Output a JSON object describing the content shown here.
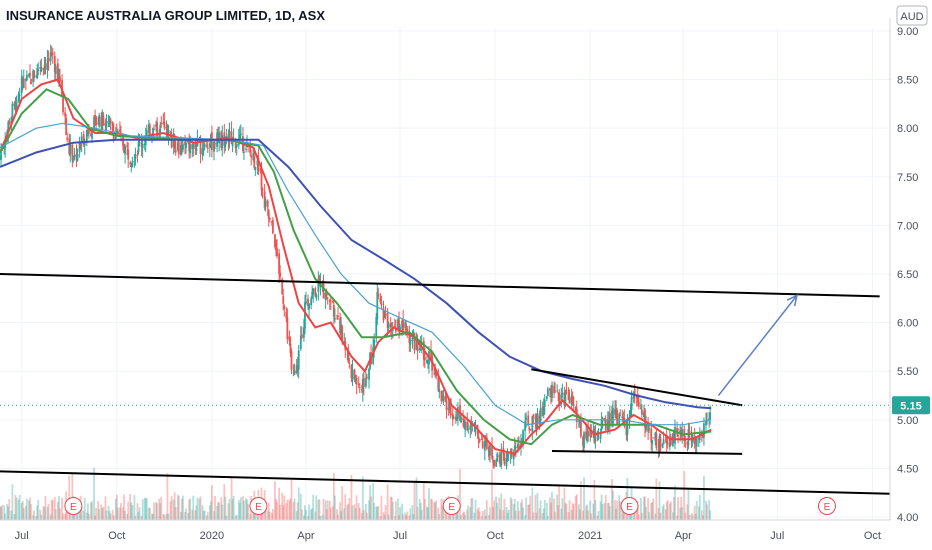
{
  "chart_data": {
    "type": "candlestick",
    "title": "INSURANCE AUSTRALIA GROUP LIMITED, 1D, ASX",
    "currency": "AUD",
    "last_price": "5.15",
    "y_ticks": [
      "9.00",
      "8.50",
      "8.00",
      "7.50",
      "7.00",
      "6.50",
      "6.00",
      "5.50",
      "5.00",
      "4.50",
      "4.00"
    ],
    "ylim": [
      3.97,
      9.03
    ],
    "x_ticks": [
      "Jul",
      "Oct",
      "2020",
      "Apr",
      "Jul",
      "Oct",
      "2021",
      "Apr",
      "Jul",
      "Oct"
    ],
    "x_ticks_start": "2019-07-01",
    "x_ticks_step_months": 3,
    "x_range": [
      "2019-06-10",
      "2021-10-18"
    ],
    "price_series": [
      [
        "2019-06-10",
        7.7
      ],
      [
        "2019-06-20",
        8.1
      ],
      [
        "2019-07-01",
        8.45
      ],
      [
        "2019-07-10",
        8.5
      ],
      [
        "2019-07-20",
        8.65
      ],
      [
        "2019-08-01",
        8.7
      ],
      [
        "2019-08-08",
        8.45
      ],
      [
        "2019-08-15",
        7.8
      ],
      [
        "2019-08-22",
        7.7
      ],
      [
        "2019-09-01",
        7.95
      ],
      [
        "2019-09-15",
        8.1
      ],
      [
        "2019-10-01",
        7.95
      ],
      [
        "2019-10-15",
        7.7
      ],
      [
        "2019-11-01",
        7.95
      ],
      [
        "2019-11-15",
        8.0
      ],
      [
        "2019-12-01",
        7.8
      ],
      [
        "2019-12-15",
        7.8
      ],
      [
        "2020-01-01",
        7.85
      ],
      [
        "2020-01-15",
        7.9
      ],
      [
        "2020-02-01",
        7.85
      ],
      [
        "2020-02-15",
        7.6
      ],
      [
        "2020-02-22",
        7.2
      ],
      [
        "2020-03-01",
        6.9
      ],
      [
        "2020-03-10",
        6.3
      ],
      [
        "2020-03-20",
        5.4
      ],
      [
        "2020-03-25",
        5.6
      ],
      [
        "2020-04-01",
        6.2
      ],
      [
        "2020-04-15",
        6.4
      ],
      [
        "2020-05-01",
        6.1
      ],
      [
        "2020-05-15",
        5.5
      ],
      [
        "2020-05-25",
        5.3
      ],
      [
        "2020-06-05",
        5.7
      ],
      [
        "2020-06-10",
        6.3
      ],
      [
        "2020-06-20",
        5.9
      ],
      [
        "2020-07-01",
        6.0
      ],
      [
        "2020-07-15",
        5.8
      ],
      [
        "2020-08-01",
        5.6
      ],
      [
        "2020-08-10",
        5.2
      ],
      [
        "2020-08-20",
        5.1
      ],
      [
        "2020-09-01",
        5.0
      ],
      [
        "2020-09-15",
        4.85
      ],
      [
        "2020-10-01",
        4.6
      ],
      [
        "2020-10-15",
        4.6
      ],
      [
        "2020-10-25",
        4.75
      ],
      [
        "2020-11-01",
        4.95
      ],
      [
        "2020-11-10",
        4.95
      ],
      [
        "2020-11-20",
        5.2
      ],
      [
        "2020-11-25",
        5.3
      ],
      [
        "2020-12-05",
        5.2
      ],
      [
        "2020-12-15",
        5.2
      ],
      [
        "2020-12-25",
        4.8
      ],
      [
        "2021-01-05",
        4.85
      ],
      [
        "2021-01-15",
        4.95
      ],
      [
        "2021-01-25",
        5.05
      ],
      [
        "2021-02-05",
        4.9
      ],
      [
        "2021-02-12",
        5.3
      ],
      [
        "2021-02-18",
        5.1
      ],
      [
        "2021-03-01",
        4.85
      ],
      [
        "2021-03-10",
        4.75
      ],
      [
        "2021-03-25",
        4.85
      ],
      [
        "2021-04-10",
        4.8
      ],
      [
        "2021-04-20",
        4.9
      ],
      [
        "2021-04-28",
        5.15
      ]
    ],
    "ma_series": [
      {
        "name": "fast",
        "color": "#ef4444",
        "points": [
          [
            "2019-06-10",
            7.75
          ],
          [
            "2019-07-01",
            8.3
          ],
          [
            "2019-07-20",
            8.45
          ],
          [
            "2019-08-05",
            8.5
          ],
          [
            "2019-08-20",
            8.1
          ],
          [
            "2019-09-10",
            7.95
          ],
          [
            "2019-10-01",
            7.95
          ],
          [
            "2019-10-20",
            7.9
          ],
          [
            "2019-11-15",
            7.95
          ],
          [
            "2019-12-15",
            7.85
          ],
          [
            "2020-01-15",
            7.9
          ],
          [
            "2020-02-10",
            7.8
          ],
          [
            "2020-02-25",
            7.4
          ],
          [
            "2020-03-10",
            6.8
          ],
          [
            "2020-03-25",
            6.2
          ],
          [
            "2020-04-10",
            5.95
          ],
          [
            "2020-04-25",
            6.0
          ],
          [
            "2020-05-15",
            5.65
          ],
          [
            "2020-05-28",
            5.5
          ],
          [
            "2020-06-10",
            5.8
          ],
          [
            "2020-06-25",
            5.95
          ],
          [
            "2020-07-15",
            5.85
          ],
          [
            "2020-08-01",
            5.6
          ],
          [
            "2020-08-20",
            5.15
          ],
          [
            "2020-09-10",
            4.95
          ],
          [
            "2020-10-01",
            4.7
          ],
          [
            "2020-10-20",
            4.65
          ],
          [
            "2020-11-05",
            4.85
          ],
          [
            "2020-11-20",
            5.0
          ],
          [
            "2020-12-05",
            5.2
          ],
          [
            "2020-12-20",
            5.05
          ],
          [
            "2021-01-05",
            4.85
          ],
          [
            "2021-01-25",
            4.9
          ],
          [
            "2021-02-12",
            5.05
          ],
          [
            "2021-03-01",
            4.95
          ],
          [
            "2021-03-20",
            4.8
          ],
          [
            "2021-04-10",
            4.8
          ],
          [
            "2021-04-28",
            4.9
          ]
        ]
      },
      {
        "name": "medium",
        "color": "#43a047",
        "points": [
          [
            "2019-06-10",
            7.75
          ],
          [
            "2019-07-01",
            8.15
          ],
          [
            "2019-07-25",
            8.4
          ],
          [
            "2019-08-15",
            8.3
          ],
          [
            "2019-09-05",
            8.0
          ],
          [
            "2019-10-01",
            7.92
          ],
          [
            "2019-11-01",
            7.9
          ],
          [
            "2019-12-01",
            7.88
          ],
          [
            "2020-01-15",
            7.88
          ],
          [
            "2020-02-15",
            7.82
          ],
          [
            "2020-03-01",
            7.55
          ],
          [
            "2020-03-20",
            6.95
          ],
          [
            "2020-04-10",
            6.45
          ],
          [
            "2020-05-01",
            6.2
          ],
          [
            "2020-05-25",
            5.85
          ],
          [
            "2020-06-15",
            5.85
          ],
          [
            "2020-07-10",
            5.9
          ],
          [
            "2020-08-01",
            5.7
          ],
          [
            "2020-08-25",
            5.3
          ],
          [
            "2020-09-20",
            5.0
          ],
          [
            "2020-10-15",
            4.8
          ],
          [
            "2020-11-05",
            4.75
          ],
          [
            "2020-11-25",
            4.95
          ],
          [
            "2020-12-15",
            5.05
          ],
          [
            "2021-01-10",
            4.95
          ],
          [
            "2021-02-05",
            4.95
          ],
          [
            "2021-03-05",
            4.95
          ],
          [
            "2021-04-01",
            4.85
          ],
          [
            "2021-04-28",
            4.88
          ]
        ]
      },
      {
        "name": "slow",
        "color": "#4aa3d4",
        "points": [
          [
            "2019-06-10",
            7.8
          ],
          [
            "2019-07-15",
            8.0
          ],
          [
            "2019-08-10",
            8.05
          ],
          [
            "2019-09-10",
            8.0
          ],
          [
            "2019-10-15",
            7.92
          ],
          [
            "2019-12-01",
            7.9
          ],
          [
            "2020-01-20",
            7.88
          ],
          [
            "2020-02-20",
            7.82
          ],
          [
            "2020-03-15",
            7.35
          ],
          [
            "2020-04-10",
            6.9
          ],
          [
            "2020-05-05",
            6.5
          ],
          [
            "2020-06-01",
            6.2
          ],
          [
            "2020-07-01",
            6.05
          ],
          [
            "2020-08-01",
            5.9
          ],
          [
            "2020-09-01",
            5.55
          ],
          [
            "2020-10-01",
            5.15
          ],
          [
            "2020-11-01",
            4.95
          ],
          [
            "2020-12-01",
            5.0
          ],
          [
            "2021-01-01",
            5.0
          ],
          [
            "2021-02-01",
            5.0
          ],
          [
            "2021-03-01",
            4.95
          ],
          [
            "2021-04-01",
            4.95
          ],
          [
            "2021-04-28",
            5.0
          ]
        ]
      },
      {
        "name": "long",
        "color": "#3f51b5",
        "points": [
          [
            "2019-06-10",
            7.6
          ],
          [
            "2019-07-15",
            7.75
          ],
          [
            "2019-08-20",
            7.85
          ],
          [
            "2019-10-01",
            7.88
          ],
          [
            "2019-11-15",
            7.88
          ],
          [
            "2020-01-01",
            7.88
          ],
          [
            "2020-02-15",
            7.88
          ],
          [
            "2020-03-15",
            7.6
          ],
          [
            "2020-04-15",
            7.2
          ],
          [
            "2020-05-15",
            6.85
          ],
          [
            "2020-06-15",
            6.65
          ],
          [
            "2020-07-15",
            6.45
          ],
          [
            "2020-08-15",
            6.2
          ],
          [
            "2020-09-15",
            5.9
          ],
          [
            "2020-10-15",
            5.65
          ],
          [
            "2020-11-15",
            5.5
          ],
          [
            "2020-12-15",
            5.42
          ],
          [
            "2021-01-15",
            5.35
          ],
          [
            "2021-02-15",
            5.25
          ],
          [
            "2021-03-15",
            5.18
          ],
          [
            "2021-04-15",
            5.13
          ],
          [
            "2021-04-28",
            5.12
          ]
        ]
      }
    ],
    "trend_lines": [
      {
        "name": "upper-channel",
        "from": [
          "2019-06-10",
          6.5
        ],
        "to": [
          "2021-10-08",
          6.27
        ]
      },
      {
        "name": "lower-channel",
        "from": [
          "2019-06-10",
          4.47
        ],
        "to": [
          "2021-10-18",
          4.24
        ]
      },
      {
        "name": "wedge-top",
        "from": [
          "2020-11-05",
          5.52
        ],
        "to": [
          "2021-05-28",
          5.15
        ]
      },
      {
        "name": "wedge-bottom",
        "from": [
          "2020-11-25",
          4.68
        ],
        "to": [
          "2021-05-28",
          4.65
        ]
      }
    ],
    "projection_arrow": {
      "from": [
        "2021-05-05",
        5.25
      ],
      "to": [
        "2021-07-20",
        6.28
      ]
    },
    "earnings_dates": [
      "2019-08-20",
      "2020-02-15",
      "2020-08-20",
      "2021-02-08",
      "2021-08-18"
    ],
    "earnings_label": "E",
    "colors": {
      "up": "#26a69a",
      "down": "#ef5350",
      "upper_price_tag_bg": "#26a69a",
      "grid": "#f0f3fa",
      "axis_text": "#4a4e59",
      "arrow": "#5b7ec8",
      "trend": "#000000"
    }
  }
}
